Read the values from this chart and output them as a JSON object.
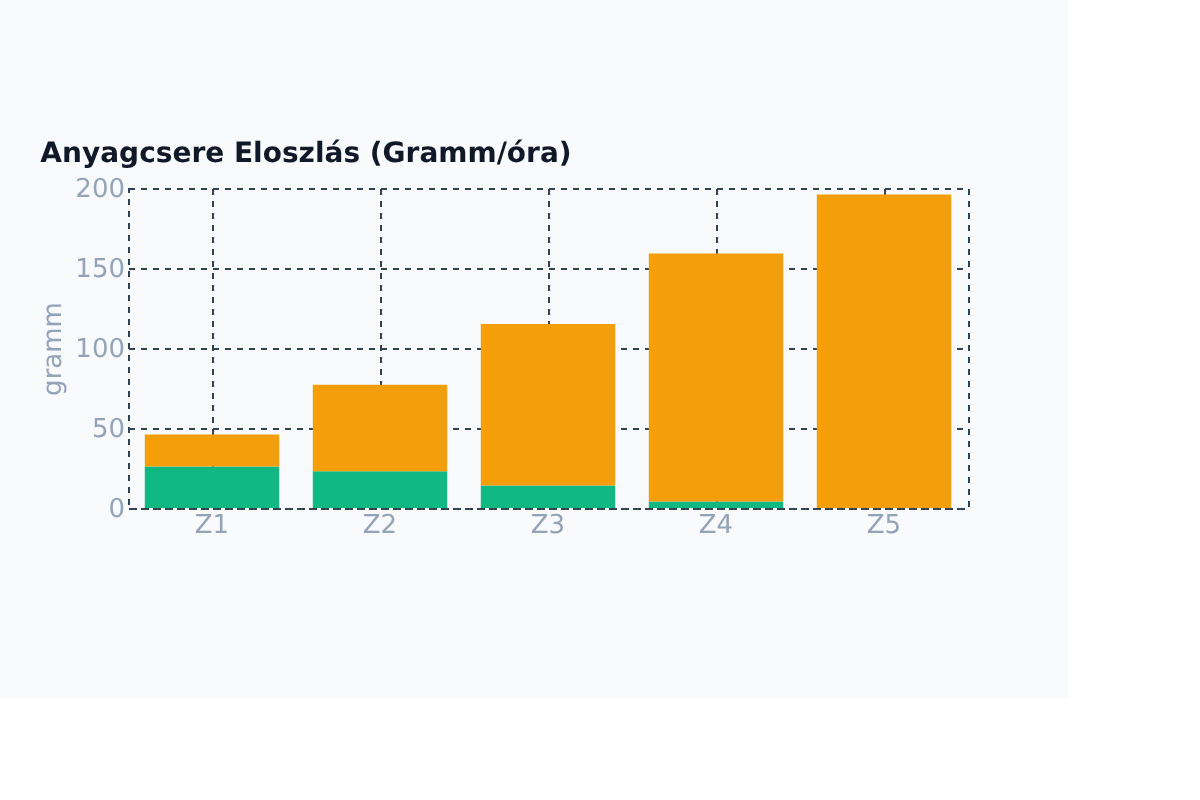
{
  "chart_data": {
    "type": "bar",
    "title": "Anyagcsere Eloszlás (Gramm/óra)",
    "ylabel": "gramm",
    "categories": [
      "Z1",
      "Z2",
      "Z3",
      "Z4",
      "Z5"
    ],
    "stacked": true,
    "series": [
      {
        "color": "#10b981",
        "values": [
          26,
          23,
          14,
          4,
          0
        ]
      },
      {
        "color": "#f59e0b",
        "values": [
          20,
          54,
          101,
          155,
          196
        ]
      }
    ],
    "ylim": [
      0,
      200
    ],
    "yticks": [
      0,
      50,
      100,
      150,
      200
    ],
    "grid": true
  }
}
